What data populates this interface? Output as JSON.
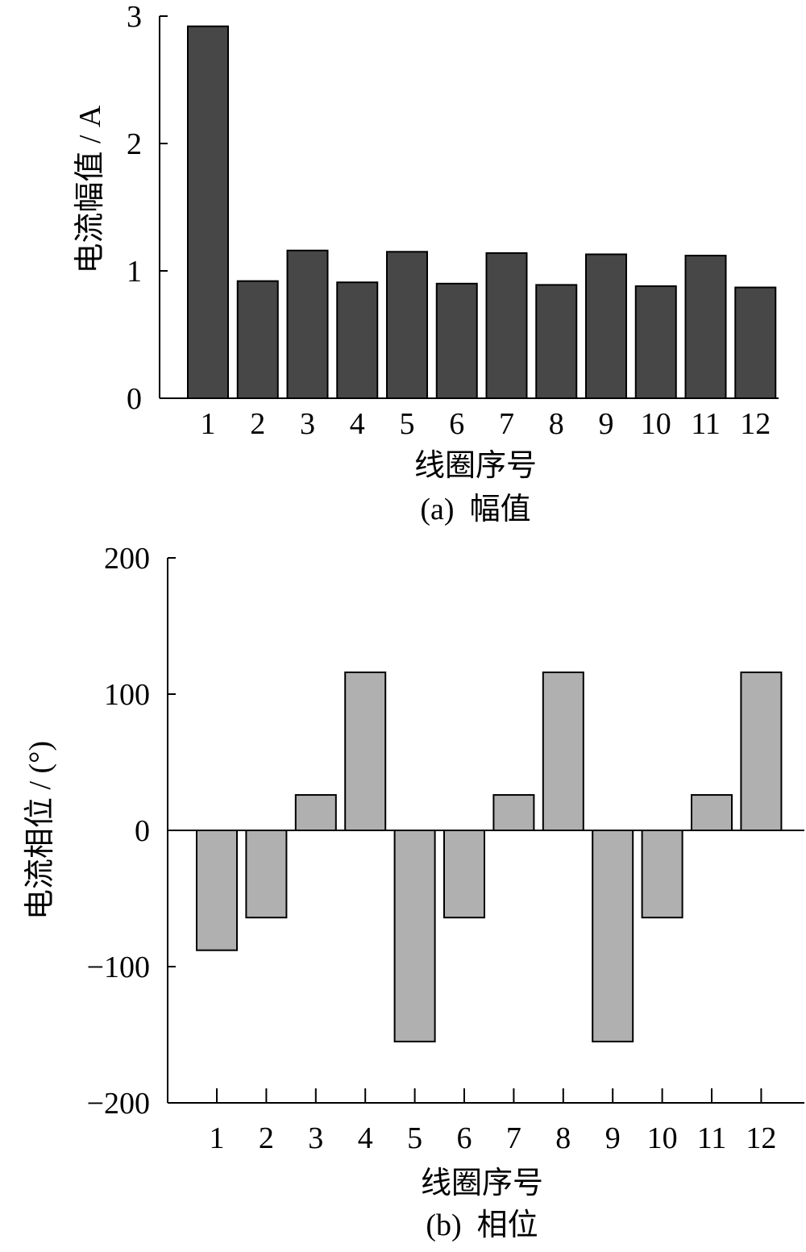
{
  "chart_data": [
    {
      "type": "bar",
      "categories": [
        "1",
        "2",
        "3",
        "4",
        "5",
        "6",
        "7",
        "8",
        "9",
        "10",
        "11",
        "12"
      ],
      "values": [
        2.92,
        0.92,
        1.16,
        0.91,
        1.15,
        0.9,
        1.14,
        0.89,
        1.13,
        0.88,
        1.12,
        0.87
      ],
      "ylim": [
        0,
        3
      ],
      "yticks": [
        "0",
        "1",
        "2",
        "3"
      ],
      "xlabel": "线圈序号",
      "ylabel": "电流幅值 / A",
      "caption": "(a)  幅值",
      "bar_color": "#474747",
      "grid": false
    },
    {
      "type": "bar",
      "categories": [
        "1",
        "2",
        "3",
        "4",
        "5",
        "6",
        "7",
        "8",
        "9",
        "10",
        "11",
        "12"
      ],
      "values": [
        -88,
        -64,
        26,
        116,
        -155,
        -64,
        26,
        116,
        -155,
        -64,
        26,
        116
      ],
      "ylim": [
        -200,
        200
      ],
      "yticks": [
        "200",
        "100",
        "0",
        "−100",
        "−200"
      ],
      "xlabel": "线圈序号",
      "ylabel": "电流相位 / (°)",
      "caption": "(b)  相位",
      "bar_color": "#b0b0b0",
      "grid": false
    }
  ]
}
